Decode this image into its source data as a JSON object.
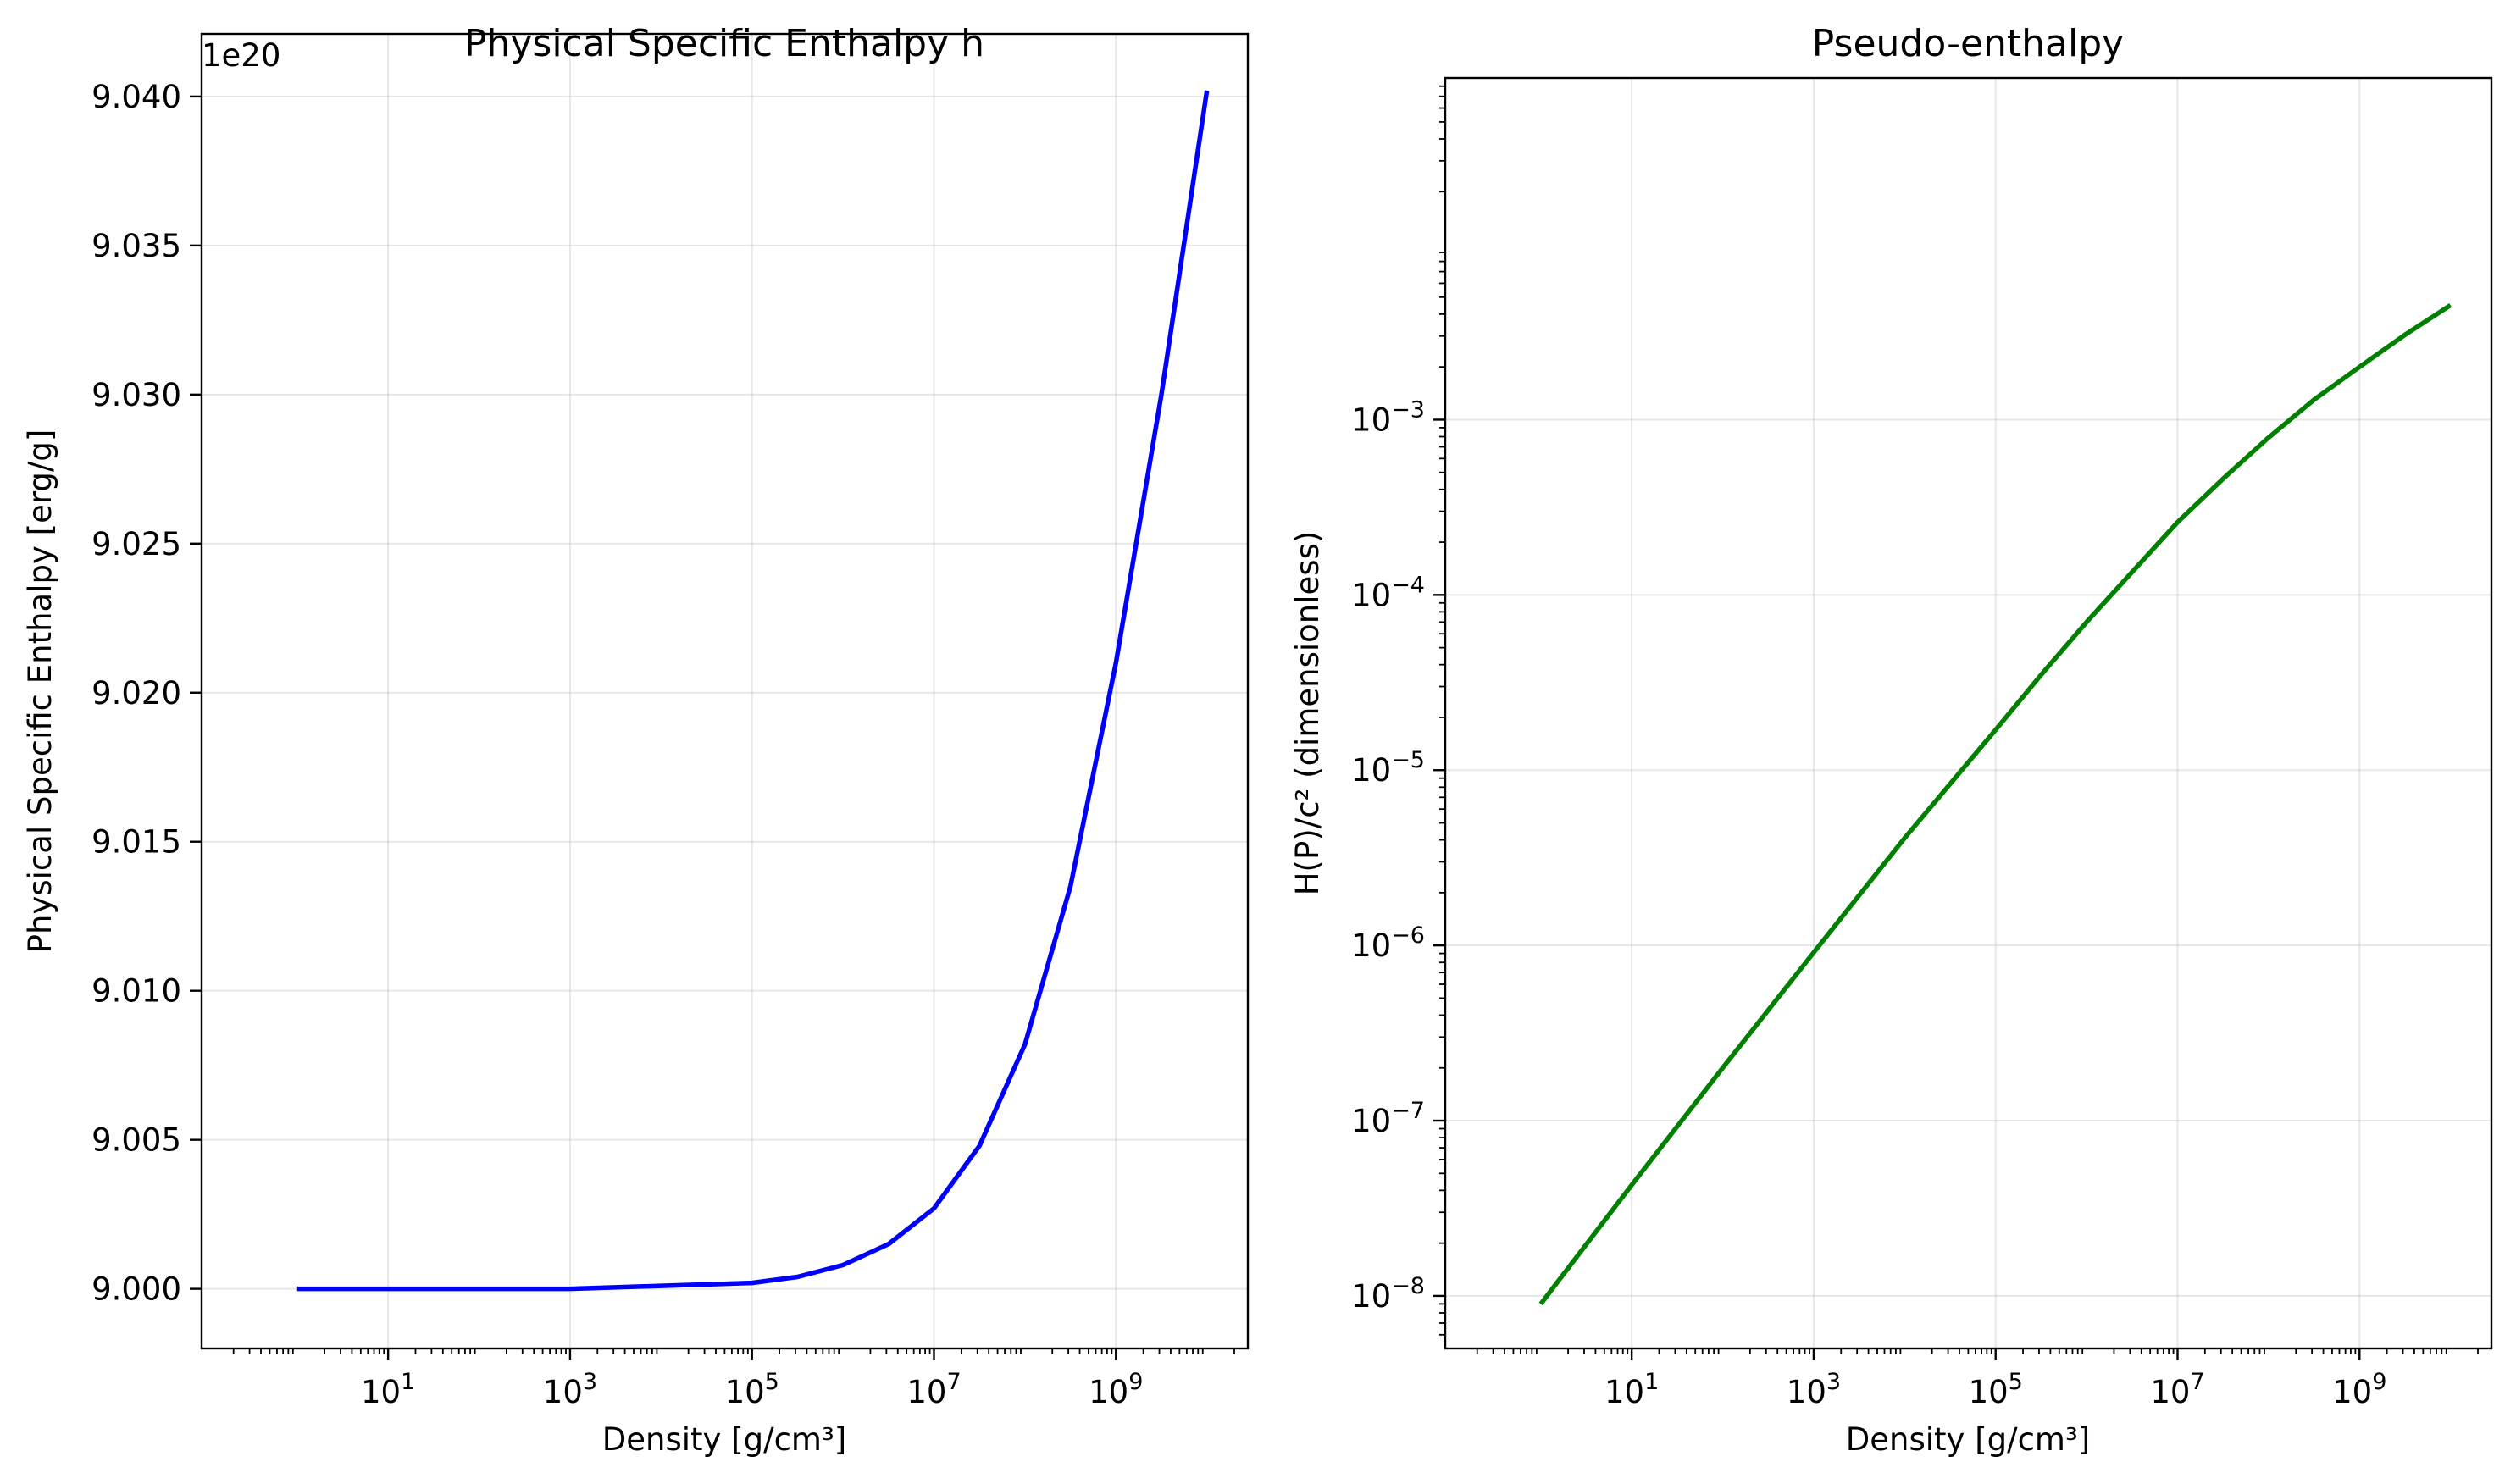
{
  "chart_data": [
    {
      "type": "line",
      "title": "Physical Specific Enthalpy h",
      "xlabel": "Density [g/cm³]",
      "ylabel": "Physical Specific Enthalpy [erg/g]",
      "offset_text": "1e20",
      "xscale": "log",
      "yscale": "linear",
      "xlim_exp": [
        -1.05,
        10.45
      ],
      "ylim": [
        8.998,
        9.0421
      ],
      "grid": true,
      "x_ticks": [
        {
          "base": "10",
          "exp": "1",
          "value": 10
        },
        {
          "base": "10",
          "exp": "3",
          "value": 1000
        },
        {
          "base": "10",
          "exp": "5",
          "value": 100000
        },
        {
          "base": "10",
          "exp": "7",
          "value": 10000000
        },
        {
          "base": "10",
          "exp": "9",
          "value": 1000000000
        }
      ],
      "y_ticks": [
        {
          "label": "9.000",
          "value": 9.0
        },
        {
          "label": "9.005",
          "value": 9.005
        },
        {
          "label": "9.010",
          "value": 9.01
        },
        {
          "label": "9.015",
          "value": 9.015
        },
        {
          "label": "9.020",
          "value": 9.02
        },
        {
          "label": "9.025",
          "value": 9.025
        },
        {
          "label": "9.030",
          "value": 9.03
        },
        {
          "label": "9.035",
          "value": 9.035
        },
        {
          "label": "9.040",
          "value": 9.04
        }
      ],
      "series": [
        {
          "color": "#0000ff",
          "x": [
            1,
            10,
            100,
            1000,
            10000,
            100000,
            316228,
            1000000,
            3162278,
            10000000,
            31622777,
            100000000,
            316227766,
            1000000000,
            3162277660,
            10000000000
          ],
          "y": [
            9.0,
            9.0,
            9.0,
            9.0,
            9.0001,
            9.0002,
            9.0004,
            9.0008,
            9.0015,
            9.0027,
            9.0048,
            9.0082,
            9.0135,
            9.021,
            9.03,
            9.0402
          ]
        }
      ]
    },
    {
      "type": "line",
      "title": "Pseudo-enthalpy",
      "xlabel": "Density [g/cm³]",
      "ylabel": "H(P)/c² (dimensionless)",
      "xscale": "log",
      "yscale": "log",
      "xlim_exp": [
        -1.05,
        10.45
      ],
      "ylim_exp": [
        -8.3,
        -1.05
      ],
      "grid": true,
      "x_ticks": [
        {
          "base": "10",
          "exp": "1",
          "value": 10
        },
        {
          "base": "10",
          "exp": "3",
          "value": 1000
        },
        {
          "base": "10",
          "exp": "5",
          "value": 100000
        },
        {
          "base": "10",
          "exp": "7",
          "value": 10000000
        },
        {
          "base": "10",
          "exp": "9",
          "value": 1000000000
        }
      ],
      "y_ticks": [
        {
          "base": "10",
          "exp": "−8",
          "value": 1e-08
        },
        {
          "base": "10",
          "exp": "−7",
          "value": 1e-07
        },
        {
          "base": "10",
          "exp": "−6",
          "value": 1e-06
        },
        {
          "base": "10",
          "exp": "−5",
          "value": 1e-05
        },
        {
          "base": "10",
          "exp": "−4",
          "value": 0.0001
        },
        {
          "base": "10",
          "exp": "−3",
          "value": 0.001
        }
      ],
      "series": [
        {
          "color": "#008000",
          "x": [
            1,
            10,
            100,
            1000,
            10000,
            100000,
            316228,
            1000000,
            3162278,
            10000000,
            31622777,
            100000000,
            316227766,
            1000000000,
            3162277660,
            10000000000
          ],
          "y": [
            9e-09,
            4.3e-08,
            2e-07,
            9.1e-07,
            4.1e-06,
            1.7e-05,
            3.5e-05,
            7e-05,
            0.000135,
            0.00026,
            0.00046,
            0.00079,
            0.0013,
            0.002,
            0.00305,
            0.0045
          ]
        }
      ]
    }
  ]
}
